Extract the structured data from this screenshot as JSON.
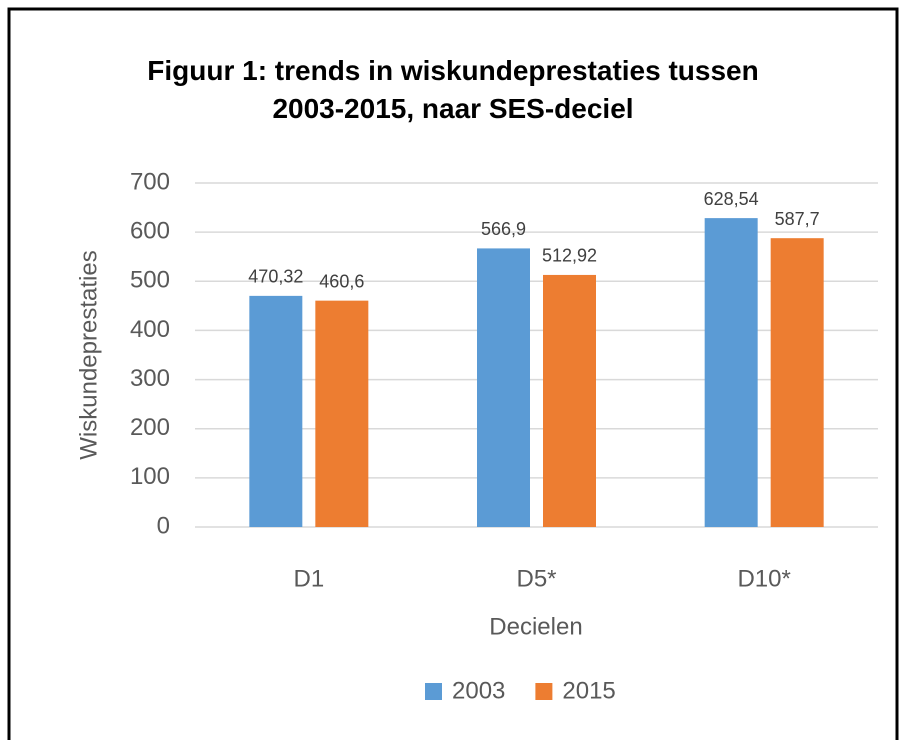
{
  "chart_data": {
    "type": "bar",
    "title": "Figuur 1: trends in wiskundeprestaties tussen 2003-2015, naar SES-deciel",
    "categories": [
      "D1",
      "D5*",
      "D10*"
    ],
    "x_label": "Decielen",
    "y_label": "Wiskundeprestaties",
    "series": [
      {
        "name": "2003",
        "color": "#5b9bd5",
        "values": [
          470.32,
          566.9,
          628.54
        ],
        "value_labels": [
          "470,32",
          "566,9",
          "628,54"
        ]
      },
      {
        "name": "2015",
        "color": "#ed7d31",
        "values": [
          460.6,
          512.92,
          587.7
        ],
        "value_labels": [
          "460,6",
          "512,92",
          "587,7"
        ]
      }
    ],
    "ylim": [
      0,
      700
    ],
    "yticks": [
      0,
      100,
      200,
      300,
      400,
      500,
      600,
      700
    ],
    "grid": true,
    "legend": "bottom"
  }
}
